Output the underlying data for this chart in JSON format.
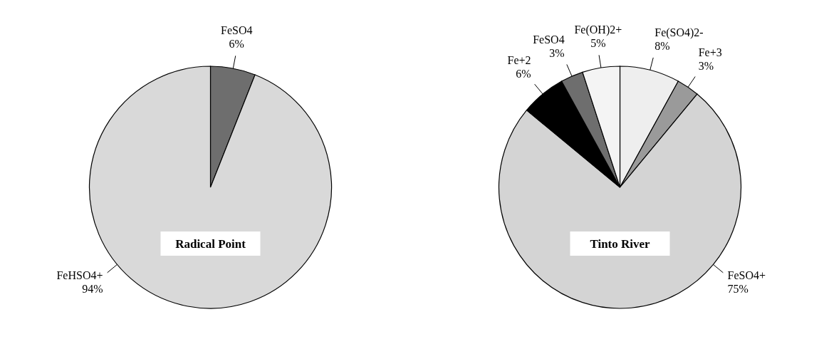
{
  "chart_data": [
    {
      "type": "pie",
      "title": "Radical Point",
      "categories": [
        "FeSO4",
        "FeHSO4+"
      ],
      "values": [
        6,
        94
      ],
      "colors": [
        "#6e6e6e",
        "#d9d9d9"
      ],
      "value_labels": [
        "6%",
        "94%"
      ]
    },
    {
      "type": "pie",
      "title": "Tinto River",
      "categories": [
        "Fe(SO4)2-",
        "Fe+3",
        "FeSO4+",
        "Fe+2",
        "FeSO4",
        "Fe(OH)2+"
      ],
      "values": [
        8,
        3,
        75,
        6,
        3,
        5
      ],
      "colors": [
        "#eeeeee",
        "#9a9a9a",
        "#d4d4d4",
        "#000000",
        "#6e6e6e",
        "#f4f4f4"
      ],
      "value_labels": [
        "8%",
        "3%",
        "75%",
        "6%",
        "3%",
        "5%"
      ]
    }
  ]
}
